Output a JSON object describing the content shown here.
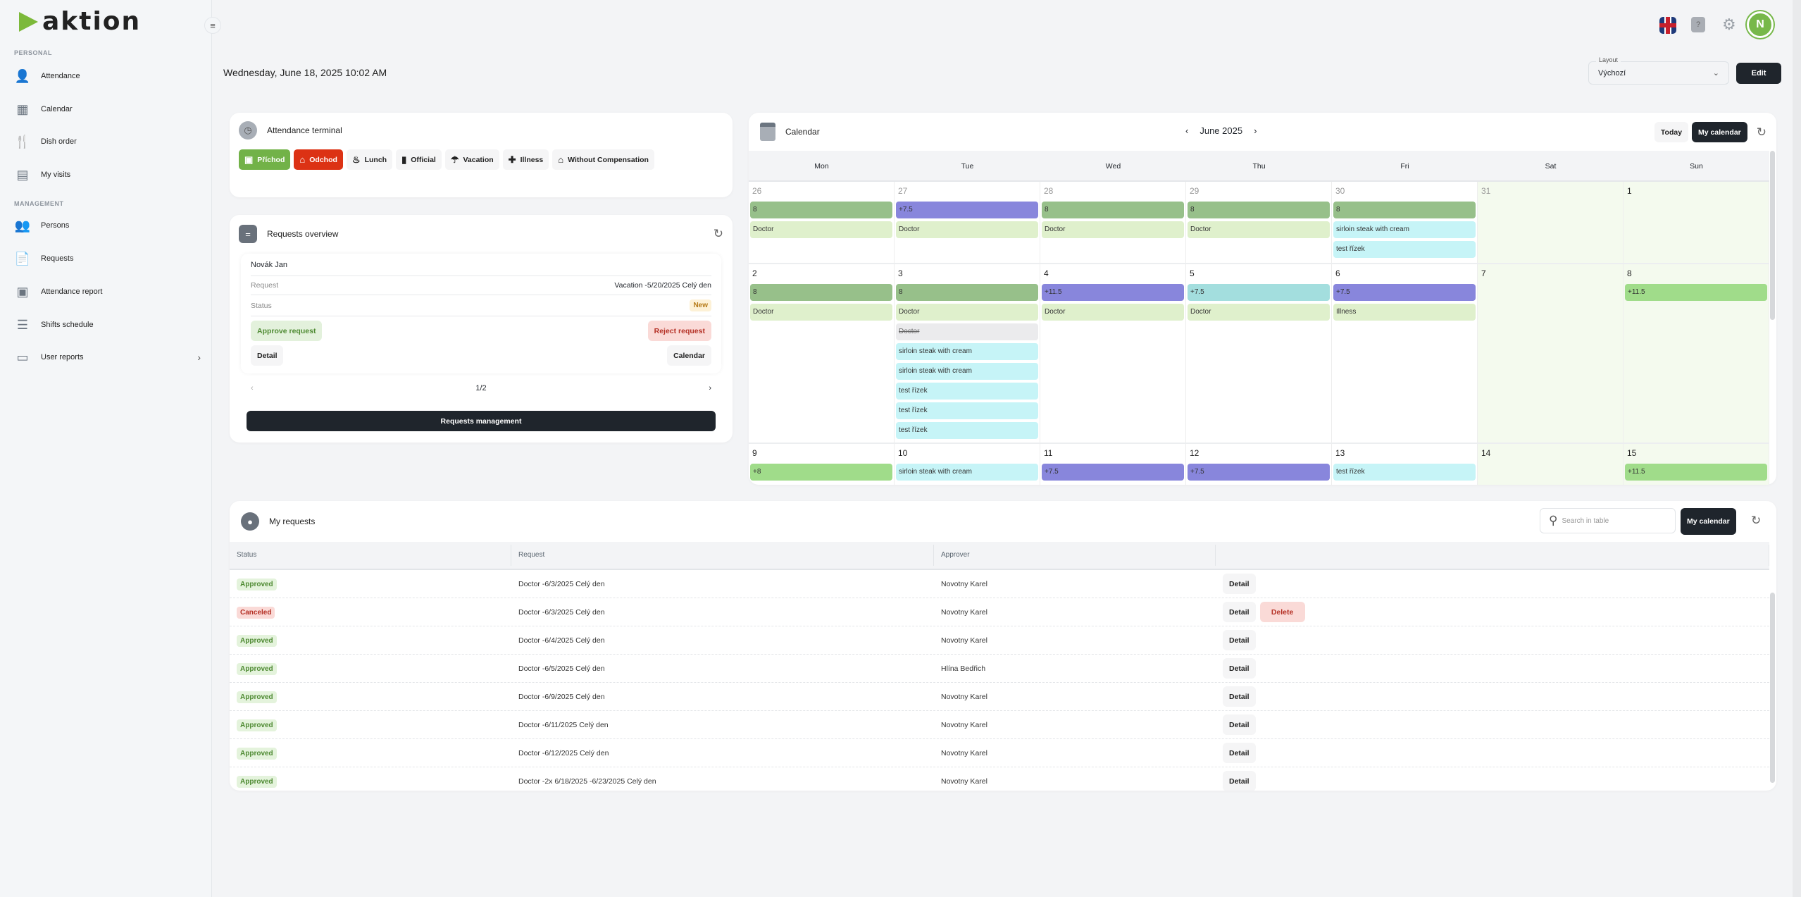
{
  "app": {
    "logo": "aktion",
    "date": "Wednesday, June 18, 2025 10:02 AM",
    "avatar_initial": "N",
    "help": "?"
  },
  "sidebar": {
    "personal": "PERSONAL",
    "management": "MANAGEMENT",
    "items": [
      {
        "label": "Attendance",
        "icon": "attendance-icon"
      },
      {
        "label": "Calendar",
        "icon": "calendar-icon"
      },
      {
        "label": "Dish order",
        "icon": "dish-icon"
      },
      {
        "label": "My visits",
        "icon": "visits-icon"
      },
      {
        "label": "Persons",
        "icon": "persons-icon"
      },
      {
        "label": "Requests",
        "icon": "requests-icon"
      },
      {
        "label": "Attendance report",
        "icon": "report-icon"
      },
      {
        "label": "Shifts schedule",
        "icon": "shifts-icon"
      },
      {
        "label": "User reports",
        "icon": "user-reports-icon"
      }
    ]
  },
  "layout": {
    "label": "Layout",
    "value": "Výchozí",
    "edit": "Edit"
  },
  "terminal": {
    "title": "Attendance terminal",
    "buttons": [
      "Příchod",
      "Odchod",
      "Lunch",
      "Official",
      "Vacation",
      "Illness",
      "Without Compensation"
    ]
  },
  "overview": {
    "title": "Requests overview",
    "name": "Novák Jan",
    "request_label": "Request",
    "request_value": "Vacation -5/20/2025 Celý den",
    "status_label": "Status",
    "status_value": "New",
    "approve": "Approve request",
    "reject": "Reject request",
    "detail": "Detail",
    "calendar": "Calendar",
    "page": "1/2",
    "manage": "Requests management"
  },
  "calendar": {
    "title": "Calendar",
    "month": "June 2025",
    "today": "Today",
    "my_calendar": "My calendar",
    "weekdays": [
      "Mon",
      "Tue",
      "Wed",
      "Thu",
      "Fri",
      "Sat",
      "Sun"
    ],
    "weeks": [
      [
        {
          "n": "26",
          "mu": true,
          "ev": [
            [
              "8",
              "hours"
            ],
            [
              "Doctor",
              "doc"
            ]
          ]
        },
        {
          "n": "27",
          "mu": true,
          "ev": [
            [
              "+7.5",
              "plus"
            ],
            [
              "Doctor",
              "doc"
            ]
          ]
        },
        {
          "n": "28",
          "mu": true,
          "ev": [
            [
              "8",
              "hours"
            ],
            [
              "Doctor",
              "doc"
            ]
          ]
        },
        {
          "n": "29",
          "mu": true,
          "ev": [
            [
              "8",
              "hours"
            ],
            [
              "Doctor",
              "doc"
            ]
          ]
        },
        {
          "n": "30",
          "mu": true,
          "ev": [
            [
              "8",
              "hours"
            ],
            [
              "sirloin steak with cream",
              "food"
            ],
            [
              "test řízek",
              "food"
            ]
          ]
        },
        {
          "n": "31",
          "mu": true,
          "we": true,
          "ev": []
        },
        {
          "n": "1",
          "we": true,
          "ev": []
        }
      ],
      [
        {
          "n": "2",
          "ev": [
            [
              "8",
              "hours"
            ],
            [
              "Doctor",
              "doc"
            ]
          ]
        },
        {
          "n": "3",
          "ev": [
            [
              "8",
              "hours"
            ],
            [
              "Doctor",
              "doc"
            ],
            [
              "Doctor",
              "strike"
            ],
            [
              "sirloin steak with cream",
              "food"
            ],
            [
              "sirloin steak with cream",
              "food"
            ],
            [
              "test řízek",
              "food"
            ],
            [
              "test řízek",
              "food"
            ],
            [
              "test řízek",
              "food"
            ]
          ]
        },
        {
          "n": "4",
          "ev": [
            [
              "+11.5",
              "plus"
            ],
            [
              "Doctor",
              "doc"
            ]
          ]
        },
        {
          "n": "5",
          "ev": [
            [
              "+7.5",
              "teal"
            ],
            [
              "Doctor",
              "doc"
            ]
          ]
        },
        {
          "n": "6",
          "ev": [
            [
              "+7.5",
              "plus"
            ],
            [
              "Illness",
              "doc"
            ]
          ]
        },
        {
          "n": "7",
          "we": true,
          "ev": []
        },
        {
          "n": "8",
          "we": true,
          "ev": [
            [
              "+11.5",
              "bright"
            ]
          ]
        }
      ],
      [
        {
          "n": "9",
          "ev": [
            [
              "+8",
              "bright"
            ]
          ]
        },
        {
          "n": "10",
          "ev": [
            [
              "sirloin steak with cream",
              "food"
            ]
          ]
        },
        {
          "n": "11",
          "ev": [
            [
              "+7.5",
              "plus"
            ]
          ]
        },
        {
          "n": "12",
          "ev": [
            [
              "+7.5",
              "plus"
            ]
          ]
        },
        {
          "n": "13",
          "ev": [
            [
              "test řízek",
              "food"
            ]
          ]
        },
        {
          "n": "14",
          "we": true,
          "ev": []
        },
        {
          "n": "15",
          "we": true,
          "ev": [
            [
              "+11.5",
              "bright"
            ]
          ]
        }
      ]
    ]
  },
  "my_requests": {
    "title": "My requests",
    "search_placeholder": "Search in table",
    "my_calendar": "My calendar",
    "columns": [
      "Status",
      "Request",
      "Approver"
    ],
    "rows": [
      {
        "status": "Approved",
        "request": "Doctor -6/3/2025 Celý den",
        "approver": "Novotny Karel",
        "actions": [
          "Detail"
        ]
      },
      {
        "status": "Canceled",
        "request": "Doctor -6/3/2025 Celý den",
        "approver": "Novotny Karel",
        "actions": [
          "Detail",
          "Delete"
        ]
      },
      {
        "status": "Approved",
        "request": "Doctor -6/4/2025 Celý den",
        "approver": "Novotny Karel",
        "actions": [
          "Detail"
        ]
      },
      {
        "status": "Approved",
        "request": "Doctor -6/5/2025 Celý den",
        "approver": "Hlína Bedřich",
        "actions": [
          "Detail"
        ]
      },
      {
        "status": "Approved",
        "request": "Doctor -6/9/2025 Celý den",
        "approver": "Novotny Karel",
        "actions": [
          "Detail"
        ]
      },
      {
        "status": "Approved",
        "request": "Doctor -6/11/2025 Celý den",
        "approver": "Novotny Karel",
        "actions": [
          "Detail"
        ]
      },
      {
        "status": "Approved",
        "request": "Doctor -6/12/2025 Celý den",
        "approver": "Novotny Karel",
        "actions": [
          "Detail"
        ]
      },
      {
        "status": "Approved",
        "request": "Doctor -2x 6/18/2025 -6/23/2025 Celý den",
        "approver": "Novotny Karel",
        "actions": [
          "Detail"
        ]
      }
    ]
  }
}
